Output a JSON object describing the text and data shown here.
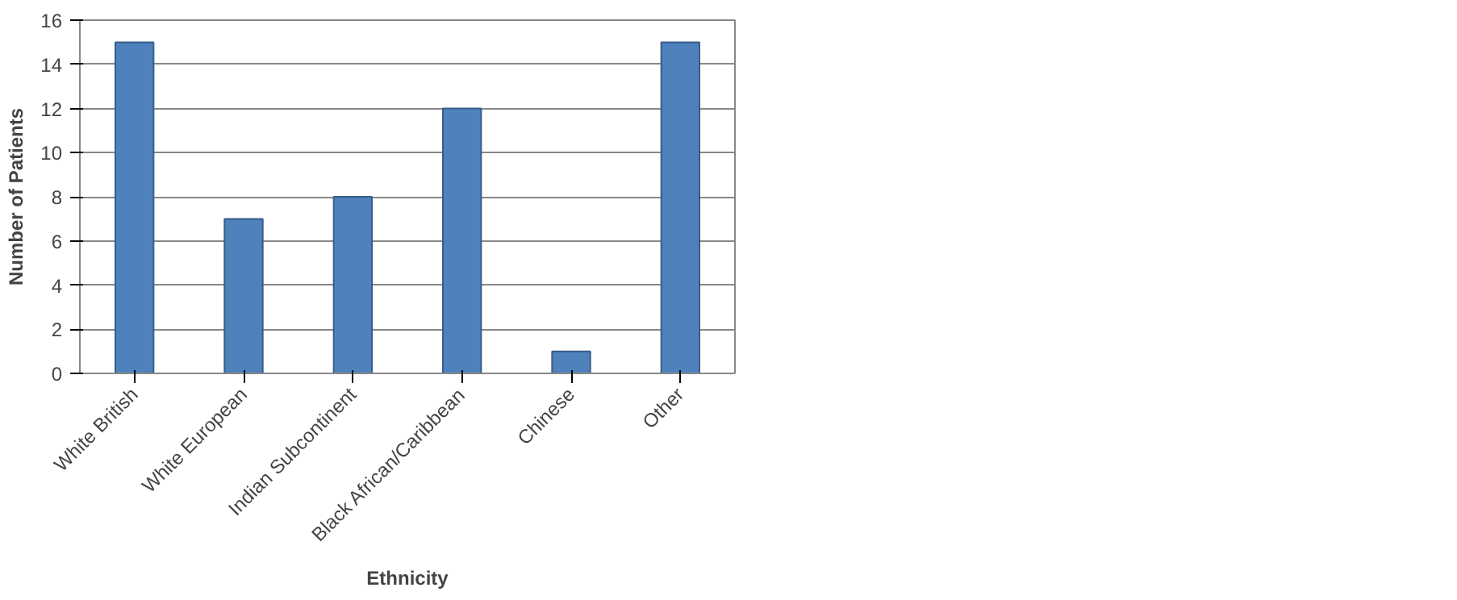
{
  "chart_data": {
    "type": "bar",
    "xlabel": "Ethnicity",
    "ylabel": "Number of Patients",
    "categories": [
      "White British",
      "White European",
      "Indian Subcontinent",
      "Black African/Caribbean",
      "Chinese",
      "Other"
    ],
    "values": [
      15,
      7,
      8,
      12,
      1,
      15
    ],
    "color": "#4f81bd",
    "ylim": [
      0,
      16
    ],
    "yticks": [
      0,
      2,
      4,
      6,
      8,
      10,
      12,
      14,
      16
    ],
    "grid": "y"
  }
}
